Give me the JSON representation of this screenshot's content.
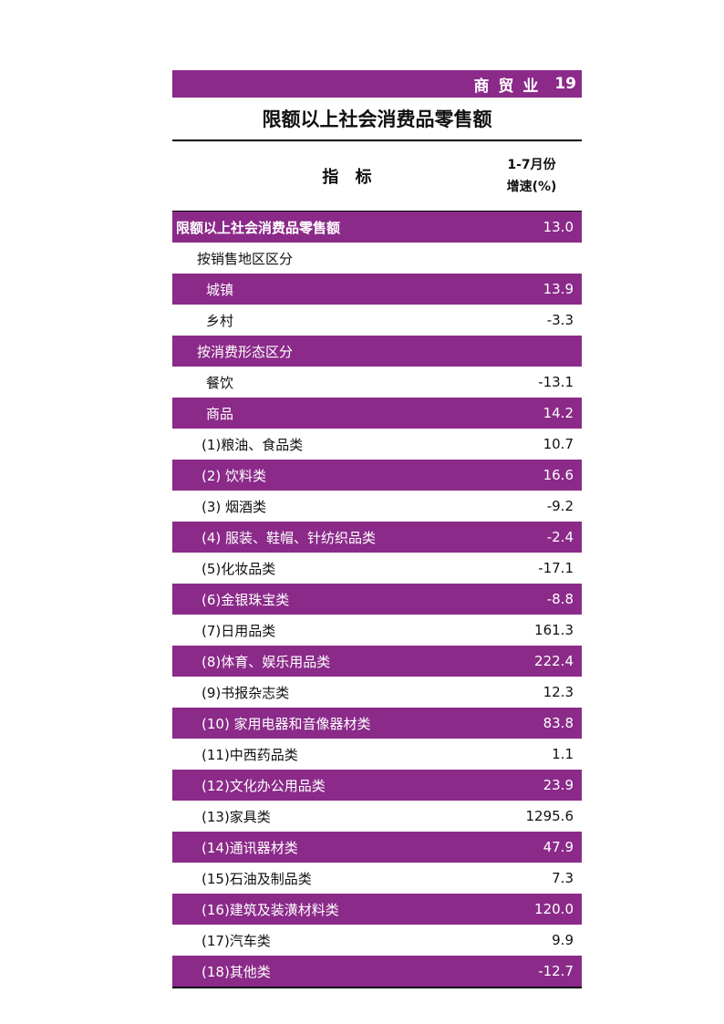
{
  "header": {
    "section": "商 贸 业",
    "page_number": "19"
  },
  "title": "限额以上社会消费品零售额",
  "table": {
    "col_indicator": "指 标",
    "col_period": "1-7月份",
    "col_unit": "增速(%)",
    "rows": [
      {
        "label": "限额以上社会消费品零售额",
        "value": "13.0"
      },
      {
        "label": "按销售地区区分",
        "value": ""
      },
      {
        "label": "城镇",
        "value": "13.9"
      },
      {
        "label": "乡村",
        "value": "-3.3"
      },
      {
        "label": "按消费形态区分",
        "value": ""
      },
      {
        "label": "餐饮",
        "value": "-13.1"
      },
      {
        "label": "商品",
        "value": "14.2"
      },
      {
        "label": "(1)粮油、食品类",
        "value": "10.7"
      },
      {
        "label": "(2) 饮料类",
        "value": "16.6"
      },
      {
        "label": "(3) 烟酒类",
        "value": "-9.2"
      },
      {
        "label": "(4) 服装、鞋帽、针纺织品类",
        "value": "-2.4"
      },
      {
        "label": "(5)化妆品类",
        "value": "-17.1"
      },
      {
        "label": "(6)金银珠宝类",
        "value": "-8.8"
      },
      {
        "label": "(7)日用品类",
        "value": "161.3"
      },
      {
        "label": "(8)体育、娱乐用品类",
        "value": "222.4"
      },
      {
        "label": "(9)书报杂志类",
        "value": "12.3"
      },
      {
        "label": "(10) 家用电器和音像器材类",
        "value": "83.8"
      },
      {
        "label": "(11)中西药品类",
        "value": "1.1"
      },
      {
        "label": "(12)文化办公用品类",
        "value": "23.9"
      },
      {
        "label": "(13)家具类",
        "value": "1295.6"
      },
      {
        "label": "(14)通讯器材类",
        "value": "47.9"
      },
      {
        "label": "(15)石油及制品类",
        "value": "7.3"
      },
      {
        "label": "(16)建筑及装潢材料类",
        "value": "120.0"
      },
      {
        "label": "(17)汽车类",
        "value": "9.9"
      },
      {
        "label": "(18)其他类",
        "value": "-12.7"
      }
    ]
  },
  "colors": {
    "accent": "#8b2a89"
  }
}
